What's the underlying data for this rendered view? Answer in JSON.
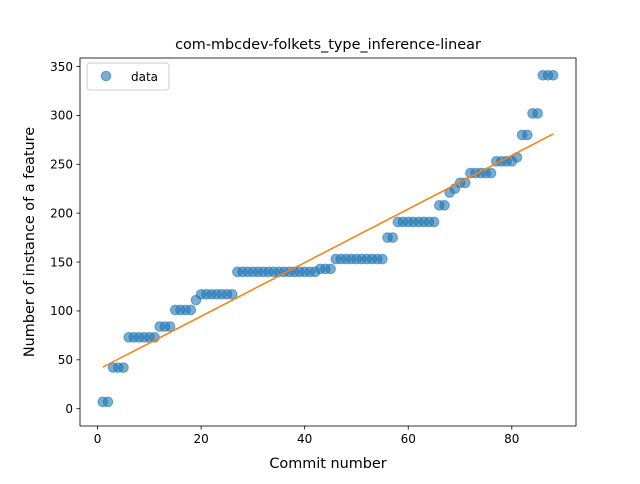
{
  "chart_data": {
    "type": "scatter",
    "title": "com-mbcdev-folkets_type_inference-linear",
    "xlabel": "Commit number",
    "ylabel": "Number of instance of a feature",
    "xlim": [
      -3.4,
      92.4
    ],
    "ylim": [
      -17.7,
      358.7
    ],
    "xticks": [
      0,
      20,
      40,
      60,
      80
    ],
    "yticks": [
      0,
      50,
      100,
      150,
      200,
      250,
      300,
      350
    ],
    "legend_position": "top-left",
    "colors": {
      "data": "#1f77b4",
      "fit": "#ff7f0e"
    },
    "series": [
      {
        "name": "data",
        "kind": "scatter",
        "x": [
          1,
          2,
          3,
          4,
          5,
          6,
          7,
          8,
          9,
          10,
          11,
          12,
          13,
          14,
          15,
          16,
          17,
          18,
          19,
          20,
          21,
          22,
          23,
          24,
          25,
          26,
          27,
          28,
          29,
          30,
          31,
          32,
          33,
          34,
          35,
          36,
          37,
          38,
          39,
          40,
          41,
          42,
          43,
          44,
          45,
          46,
          47,
          48,
          49,
          50,
          51,
          52,
          53,
          54,
          55,
          56,
          57,
          58,
          59,
          60,
          61,
          62,
          63,
          64,
          65,
          66,
          67,
          68,
          69,
          70,
          71,
          72,
          73,
          74,
          75,
          76,
          77,
          78,
          79,
          80,
          81,
          82,
          83,
          84,
          85,
          86,
          87,
          88
        ],
        "y": [
          7,
          7,
          42,
          42,
          42,
          73,
          73,
          73,
          73,
          73,
          73,
          84,
          84,
          84,
          101,
          101,
          101,
          101,
          111,
          117,
          117,
          117,
          117,
          117,
          117,
          117,
          140,
          140,
          140,
          140,
          140,
          140,
          140,
          140,
          140,
          140,
          140,
          140,
          140,
          140,
          140,
          140,
          143,
          143,
          143,
          153,
          153,
          153,
          153,
          153,
          153,
          153,
          153,
          153,
          153,
          175,
          175,
          191,
          191,
          191,
          191,
          191,
          191,
          191,
          191,
          208,
          208,
          221,
          225,
          231,
          231,
          241,
          241,
          241,
          241,
          241,
          253,
          253,
          253,
          253,
          257,
          280,
          280,
          302,
          302,
          341,
          341,
          341
        ]
      },
      {
        "kind": "line",
        "x": [
          1,
          88
        ],
        "y": [
          42.5,
          281.0
        ]
      }
    ]
  }
}
